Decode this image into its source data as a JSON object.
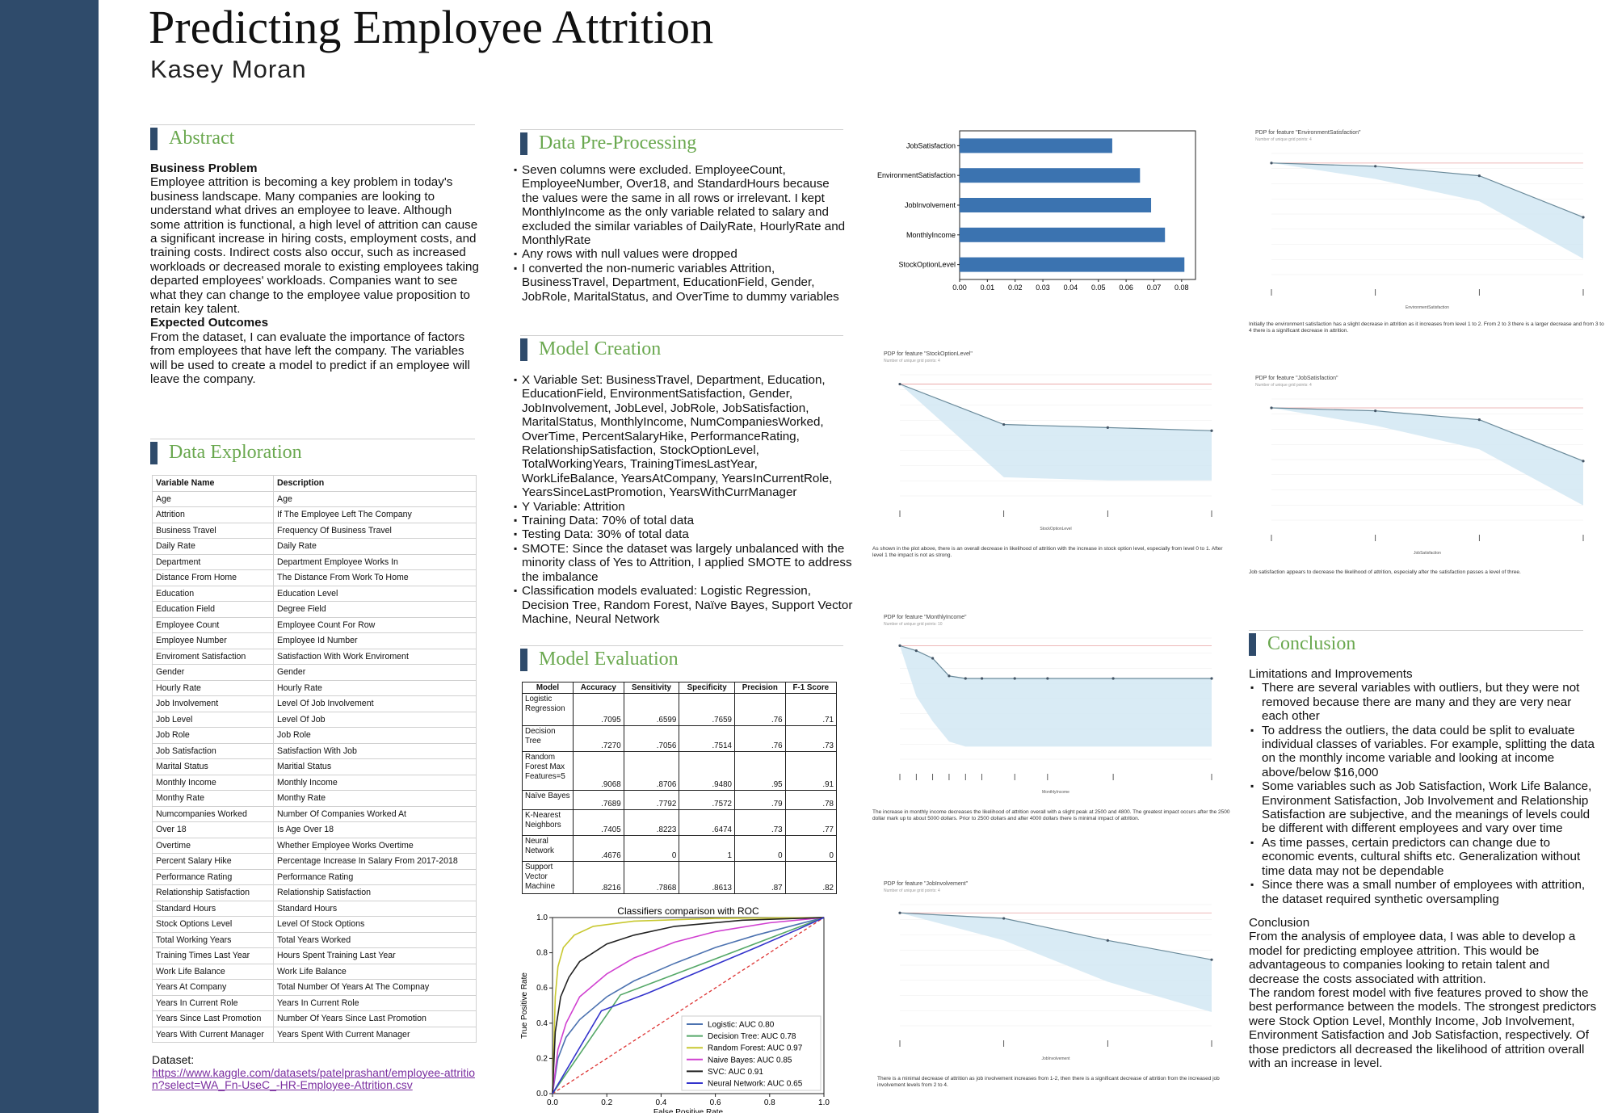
{
  "poster": {
    "title": "Predicting Employee Attrition",
    "author": "Kasey Moran"
  },
  "abstract": {
    "heading": "Abstract",
    "problem_label": "Business Problem",
    "problem_text": "Employee attrition is becoming a key problem in today's business landscape. Many companies are looking to understand what drives an employee to leave. Although some attrition is functional, a high level of attrition can cause a significant increase in hiring costs, employment costs, and training costs. Indirect costs also occur, such as increased workloads or decreased morale to existing employees taking departed employees' workloads. Companies want to see what they can change to the employee value proposition to retain key talent.",
    "outcomes_label": "Expected Outcomes",
    "outcomes_text": "From the dataset, I can evaluate the importance of factors from employees that have left the company. The variables will be used to create a model to predict if an employee will leave the company."
  },
  "exploration": {
    "heading": "Data Exploration",
    "columns": [
      "Variable Name",
      "Description"
    ],
    "rows": [
      [
        "Age",
        "Age"
      ],
      [
        "Attrition",
        "If The Employee Left The Company"
      ],
      [
        "Business Travel",
        "Frequency Of Business Travel"
      ],
      [
        "Daily Rate",
        "Daily Rate"
      ],
      [
        "Department",
        "Department Employee Works In"
      ],
      [
        "Distance From Home",
        "The Distance From Work To Home"
      ],
      [
        "Education",
        "Education Level"
      ],
      [
        "Education Field",
        "Degree Field"
      ],
      [
        "Employee Count",
        "Employee Count For Row"
      ],
      [
        "Employee Number",
        "Employee Id Number"
      ],
      [
        "Enviroment Satisfaction",
        "Satisfaction With Work Enviroment"
      ],
      [
        "Gender",
        "Gender"
      ],
      [
        "Hourly Rate",
        "Hourly Rate"
      ],
      [
        "Job Involvement",
        "Level Of Job Involvement"
      ],
      [
        "Job Level",
        "Level Of Job"
      ],
      [
        "Job Role",
        "Job Role"
      ],
      [
        "Job Satisfaction",
        "Satisfaction With Job"
      ],
      [
        "Marital Status",
        "Maritial Status"
      ],
      [
        "Monthly Income",
        "Monthly Income"
      ],
      [
        "Monthy Rate",
        "Monthy Rate"
      ],
      [
        "Numcompanies Worked",
        "Number Of Companies Worked At"
      ],
      [
        "Over 18",
        "Is Age Over 18"
      ],
      [
        "Overtime",
        "Whether Employee Works Overtime"
      ],
      [
        "Percent Salary Hike",
        "Percentage Increase In Salary From 2017-2018"
      ],
      [
        "Performance Rating",
        "Performance Rating"
      ],
      [
        "Relationship Satisfaction",
        "Relationship Satisfaction"
      ],
      [
        "Standard Hours",
        "Standard Hours"
      ],
      [
        "Stock Options Level",
        "Level Of Stock Options"
      ],
      [
        "Total Working Years",
        "Total Years Worked"
      ],
      [
        "Training Times Last Year",
        "Hours Spent Training Last Year"
      ],
      [
        "Work Life Balance",
        "Work Life Balance"
      ],
      [
        "Years At Company",
        "Total Number Of Years At The Compnay"
      ],
      [
        "Years In Current Role",
        "Years In Current Role"
      ],
      [
        "Years Since Last Promotion",
        "Number Of Years Since Last Promotion"
      ],
      [
        "Years With Current Manager",
        "Years Spent With Current Manager"
      ]
    ],
    "dataset_label": "Dataset:",
    "dataset_link": "https://www.kaggle.com/datasets/patelprashant/employee-attrition?select=WA_Fn-UseC_-HR-Employee-Attrition.csv"
  },
  "preprocessing": {
    "heading": "Data Pre-Processing",
    "bullets": [
      "Seven columns were excluded. EmployeeCount, EmployeeNumber, Over18, and StandardHours because the values were the same in all rows or irrelevant. I kept MonthlyIncome as the only variable related to salary and excluded the similar variables of DailyRate, HourlyRate and MonthlyRate",
      "Any rows with null values were dropped",
      "I converted the non-numeric variables Attrition, BusinessTravel, Department, EducationField, Gender, JobRole, MaritalStatus, and OverTime to dummy variables"
    ]
  },
  "creation": {
    "heading": "Model Creation",
    "bullets": [
      "X Variable Set: BusinessTravel, Department, Education, EducationField, EnvironmentSatisfaction, Gender, JobInvolvement, JobLevel, JobRole, JobSatisfaction, MaritalStatus, MonthlyIncome, NumCompaniesWorked, OverTime, PercentSalaryHike, PerformanceRating, RelationshipSatisfaction, StockOptionLevel, TotalWorkingYears, TrainingTimesLastYear, WorkLifeBalance, YearsAtCompany, YearsInCurrentRole, YearsSinceLastPromotion, YearsWithCurrManager",
      "Y Variable: Attrition",
      "Training Data: 70% of total data",
      "Testing Data: 30% of total data",
      "SMOTE: Since the dataset was largely unbalanced with the minority class of Yes to Attrition, I applied SMOTE to address the imbalance",
      "Classification models evaluated: Logistic Regression, Decision Tree, Random Forest, Naïve Bayes, Support Vector Machine, Neural Network"
    ]
  },
  "evaluation": {
    "heading": "Model Evaluation",
    "columns": [
      "Model",
      "Accuracy",
      "Sensitivity",
      "Specificity",
      "Precision",
      "F-1 Score"
    ],
    "rows": [
      {
        "model": "Logistic Regression",
        "vals": [
          ".7095",
          ".6599",
          ".7659",
          ".76",
          ".71"
        ]
      },
      {
        "model": "Decision Tree",
        "vals": [
          ".7270",
          ".7056",
          ".7514",
          ".76",
          ".73"
        ]
      },
      {
        "model": "Random Forest Max Features=5",
        "vals": [
          ".9068",
          ".8706",
          ".9480",
          ".95",
          ".91"
        ]
      },
      {
        "model": "Naïve Bayes",
        "vals": [
          ".7689",
          ".7792",
          ".7572",
          ".79",
          ".78"
        ]
      },
      {
        "model": "K-Nearest Neighbors",
        "vals": [
          ".7405",
          ".8223",
          ".6474",
          ".73",
          ".77"
        ]
      },
      {
        "model": "Neural Network",
        "vals": [
          ".4676",
          "0",
          "1",
          "0",
          "0"
        ]
      },
      {
        "model": "Support Vector Machine",
        "vals": [
          ".8216",
          ".7868",
          ".8613",
          ".87",
          ".82"
        ]
      }
    ]
  },
  "roc_chart": {
    "chart_data": {
      "type": "line",
      "title": "Classifiers comparison with ROC",
      "xlabel": "False Positive Rate",
      "ylabel": "True Positive Rate",
      "xlim": [
        0,
        1
      ],
      "ylim": [
        0,
        1
      ],
      "xticks": [
        "0.0",
        "0.2",
        "0.4",
        "0.6",
        "0.8",
        "1.0"
      ],
      "yticks": [
        "0.0",
        "0.2",
        "0.4",
        "0.6",
        "0.8",
        "1.0"
      ],
      "legend_position": "bottom-right",
      "series": [
        {
          "name": "Logistic: AUC 0.80",
          "color": "#4c72b0",
          "points": [
            [
              0,
              0
            ],
            [
              0.02,
              0.2
            ],
            [
              0.05,
              0.32
            ],
            [
              0.1,
              0.42
            ],
            [
              0.2,
              0.55
            ],
            [
              0.3,
              0.64
            ],
            [
              0.45,
              0.74
            ],
            [
              0.6,
              0.83
            ],
            [
              0.75,
              0.9
            ],
            [
              0.9,
              0.96
            ],
            [
              1,
              1
            ]
          ]
        },
        {
          "name": "Decision Tree: AUC 0.78",
          "color": "#55a868",
          "points": [
            [
              0,
              0
            ],
            [
              0.25,
              0.56
            ],
            [
              1,
              1
            ]
          ]
        },
        {
          "name": "Random Forest: AUC 0.97",
          "color": "#c8c830",
          "points": [
            [
              0,
              0
            ],
            [
              0.01,
              0.55
            ],
            [
              0.02,
              0.72
            ],
            [
              0.04,
              0.83
            ],
            [
              0.08,
              0.9
            ],
            [
              0.15,
              0.95
            ],
            [
              0.3,
              0.98
            ],
            [
              0.6,
              0.995
            ],
            [
              1,
              1
            ]
          ]
        },
        {
          "name": "Naive Bayes: AUC 0.85",
          "color": "#d040d0",
          "points": [
            [
              0,
              0
            ],
            [
              0.02,
              0.25
            ],
            [
              0.05,
              0.4
            ],
            [
              0.1,
              0.55
            ],
            [
              0.2,
              0.68
            ],
            [
              0.3,
              0.77
            ],
            [
              0.45,
              0.86
            ],
            [
              0.6,
              0.92
            ],
            [
              0.8,
              0.97
            ],
            [
              1,
              1
            ]
          ]
        },
        {
          "name": "SVC: AUC 0.91",
          "color": "#222222",
          "points": [
            [
              0,
              0
            ],
            [
              0.01,
              0.35
            ],
            [
              0.03,
              0.55
            ],
            [
              0.06,
              0.66
            ],
            [
              0.1,
              0.75
            ],
            [
              0.2,
              0.85
            ],
            [
              0.3,
              0.9
            ],
            [
              0.45,
              0.95
            ],
            [
              0.7,
              0.985
            ],
            [
              1,
              1
            ]
          ]
        },
        {
          "name": "Neural Network: AUC 0.65",
          "color": "#3333cc",
          "points": [
            [
              0,
              0
            ],
            [
              0.18,
              0.47
            ],
            [
              0.35,
              0.57
            ],
            [
              0.55,
              0.7
            ],
            [
              0.75,
              0.83
            ],
            [
              0.9,
              0.93
            ],
            [
              1,
              1
            ]
          ]
        }
      ]
    }
  },
  "importance_chart": {
    "chart_data": {
      "type": "bar",
      "orientation": "horizontal",
      "categories": [
        "JobSatisfaction",
        "EnvironmentSatisfaction",
        "JobInvolvement",
        "MonthlyIncome",
        "StockOptionLevel"
      ],
      "values": [
        0.055,
        0.065,
        0.069,
        0.074,
        0.081
      ],
      "xlim": [
        0,
        0.085
      ],
      "xticks": [
        "0.00",
        "0.01",
        "0.02",
        "0.03",
        "0.04",
        "0.05",
        "0.06",
        "0.07",
        "0.08"
      ],
      "color": "#3b73b0"
    }
  },
  "pdp_plots": [
    {
      "title": "PDP for feature \"EnvironmentSatisfaction\"",
      "subtitle": "Number of unique grid points: 4",
      "xlabel": "EnvironmentSatisfaction",
      "caption": "Initially the environment satisfaction has a slight decrease in attrition as it increases from level 1 to 2. From 2 to 3 there is a larger decrease and from 3 to 4 there is a significant decrease in attrition.",
      "chart_data": {
        "type": "line",
        "x": [
          1,
          2,
          3,
          4
        ],
        "y": [
          0.0,
          -0.01,
          -0.04,
          -0.17
        ],
        "lower": [
          0.0,
          -0.05,
          -0.12,
          -0.3
        ]
      }
    },
    {
      "title": "PDP for feature \"StockOptionLevel\"",
      "subtitle": "Number of unique grid points: 4",
      "xlabel": "StockOptionLevel",
      "caption": "As shown in the plot above, there is an overall decrease in likelihood of attrition with the increase in stock option level, especially from level 0 to 1. After level 1 the impact is not as strong.",
      "chart_data": {
        "type": "line",
        "x": [
          0,
          1,
          2,
          3
        ],
        "y": [
          0.0,
          -0.13,
          -0.14,
          -0.15
        ],
        "lower": [
          0.0,
          -0.3,
          -0.31,
          -0.31
        ]
      }
    },
    {
      "title": "PDP for feature \"JobSatisfaction\"",
      "subtitle": "Number of unique grid points: 4",
      "xlabel": "JobSatisfaction",
      "caption": "Job satisfaction appears to decrease the likelihood of attrition, especially after the satisfaction passes a level of three.",
      "chart_data": {
        "type": "line",
        "x": [
          1,
          2,
          3,
          4
        ],
        "y": [
          0.0,
          -0.01,
          -0.04,
          -0.18
        ],
        "lower": [
          0.0,
          -0.06,
          -0.14,
          -0.33
        ]
      }
    },
    {
      "title": "PDP for feature \"MonthlyIncome\"",
      "subtitle": "Number of unique grid points: 10",
      "xlabel": "MonthlyIncome",
      "caption": "The increase in monthly income decreases the likelihood of attrition overall with a slight peak at 2500 and 4800. The greatest impact occurs after the 2500 dollar mark up to about 5000 dollars. Prior to 2500 dollars and after 4000 dollars there is minimal impact of attrition.",
      "chart_data": {
        "type": "line",
        "x": [
          1000,
          2000,
          3000,
          4000,
          5000,
          6000,
          8000,
          10000,
          14000,
          20000
        ],
        "y": [
          0.0,
          -0.02,
          -0.05,
          -0.12,
          -0.13,
          -0.13,
          -0.13,
          -0.13,
          -0.13,
          -0.13
        ],
        "lower": [
          0.0,
          -0.2,
          -0.3,
          -0.38,
          -0.4,
          -0.4,
          -0.4,
          -0.4,
          -0.4,
          -0.4
        ]
      }
    },
    {
      "title": "PDP for feature \"JobInvolvement\"",
      "subtitle": "Number of unique grid points: 4",
      "xlabel": "JobInvolvement",
      "caption": "There is a minimal decrease of attrition as job involvement increases from 1-2, then there is a significant decrease of attrition from the increased job involvement levels from 2 to 4.",
      "chart_data": {
        "type": "line",
        "x": [
          1,
          2,
          3,
          4
        ],
        "y": [
          0.0,
          -0.02,
          -0.1,
          -0.17
        ],
        "lower": [
          0.0,
          -0.1,
          -0.25,
          -0.36
        ]
      }
    }
  ],
  "conclusion": {
    "heading": "Conclusion",
    "limits_label": "Limitations and Improvements",
    "limits": [
      "There are several variables with outliers, but they were not removed because there are many and they are very near each other",
      "To address the outliers, the data could be split to evaluate individual classes of variables. For example, splitting the data on the monthly income variable and looking at income above/below $16,000",
      "Some variables such as Job Satisfaction, Work Life Balance, Environment Satisfaction, Job Involvement and Relationship Satisfaction are subjective, and the meanings of levels could be different with different employees and vary over time",
      "As time passes, certain predictors can change due to economic events, cultural shifts etc. Generalization without time data may not be dependable",
      "Since there was a small number of employees with attrition, the dataset required synthetic oversampling"
    ],
    "conclusion_label": "Conclusion",
    "conclusion_p1": "From the analysis of employee data, I was able to develop a model for predicting employee attrition. This would be advantageous to companies looking to retain talent and decrease the costs associated with attrition.",
    "conclusion_p2": "The random forest model with five features proved to show the best performance between the models. The strongest predictors were Stock Option Level, Monthly Income, Job Involvement, Environment Satisfaction and Job Satisfaction, respectively. Of those predictors all decreased the likelihood of attrition overall with an increase in level."
  }
}
